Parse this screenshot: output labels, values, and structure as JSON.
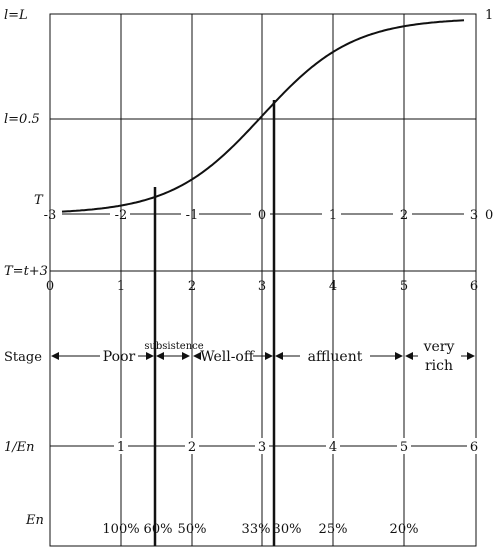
{
  "y_axis_labels": {
    "l_L": "l=L",
    "l_half": "l=0.5",
    "T": "T",
    "T_shift": "T=t+3",
    "stage": "Stage",
    "inv_en": "1/En",
    "en": "En"
  },
  "right_axis_labels": {
    "one": "1",
    "zero": "0"
  },
  "t_axis": [
    "-3",
    "-2",
    "-1",
    "0",
    "1",
    "2",
    "3"
  ],
  "t_shift_axis": [
    "0",
    "1",
    "2",
    "3",
    "4",
    "5",
    "6"
  ],
  "inv_en_axis": [
    "1",
    "2",
    "3",
    "4",
    "5",
    "6"
  ],
  "en_axis": [
    "100%",
    "60%",
    "50%",
    "33%",
    "30%",
    "25%",
    "20%"
  ],
  "stages": {
    "poor": "Poor",
    "subsistence": "subsistence",
    "well_off": "Well-off",
    "affluent": "affluent",
    "very": "very",
    "rich": "rich"
  }
}
